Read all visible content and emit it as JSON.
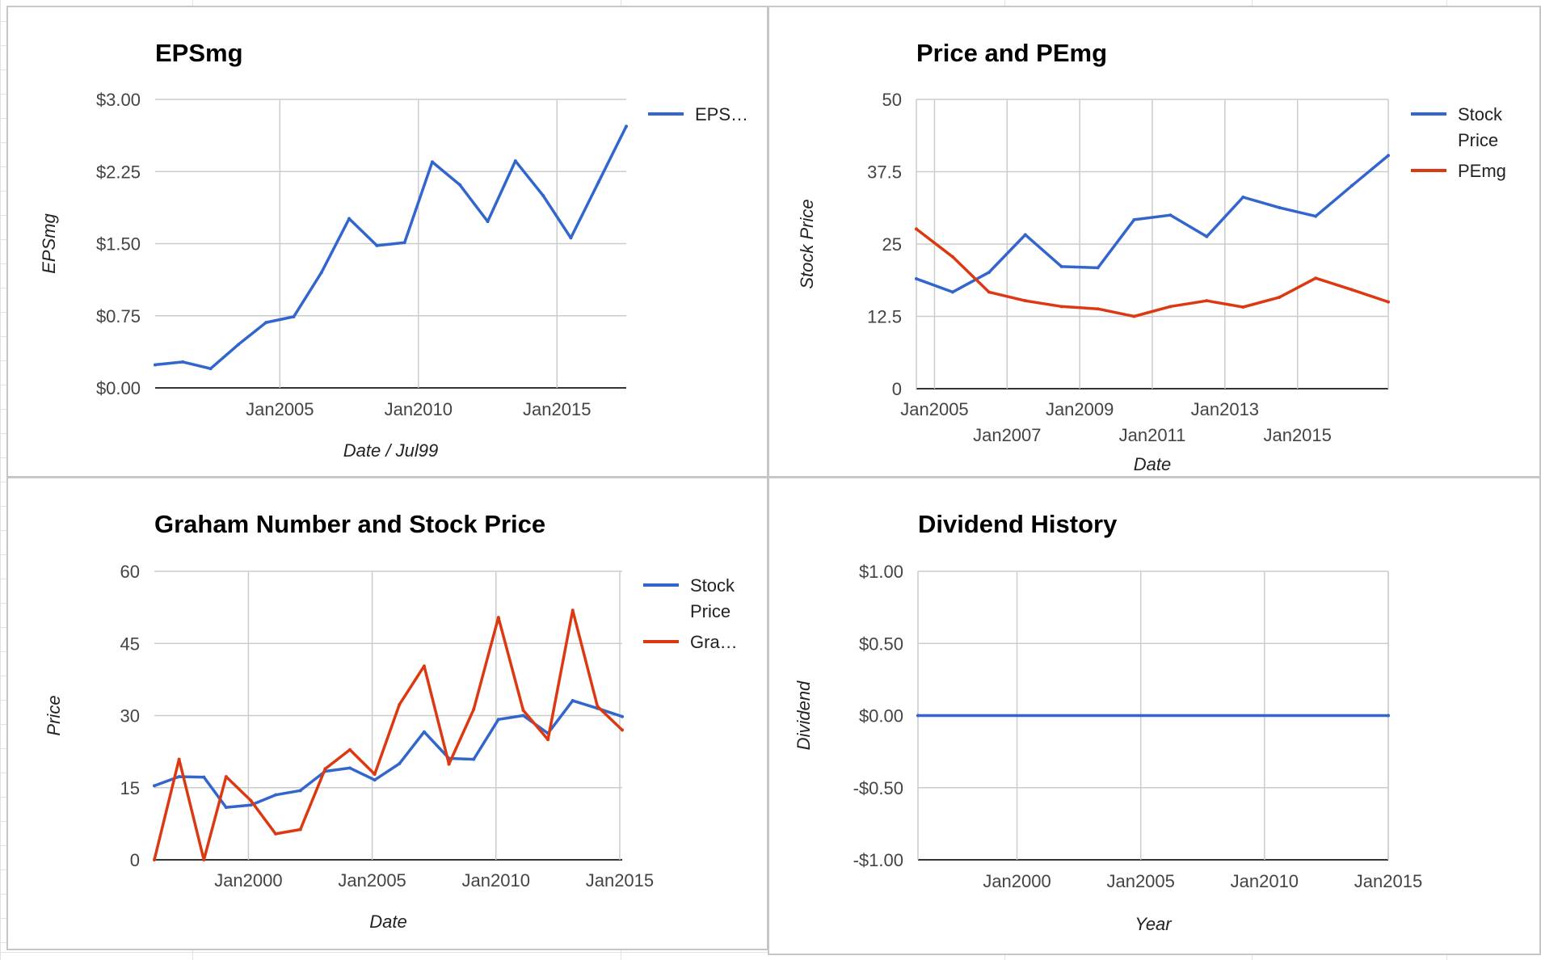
{
  "colors": {
    "blue": "#3366cc",
    "red": "#dc3912",
    "grid": "#cccccc"
  },
  "chart_data": [
    {
      "type": "line",
      "title": "EPSmg",
      "xlabel": "Date / Jul99",
      "ylabel": "EPSmg",
      "x_is_date": true,
      "xlim": [
        2000.5,
        2017.5
      ],
      "x_gridlines": [
        2005,
        2010,
        2015
      ],
      "x_ticks": [
        {
          "label": "Jan2005",
          "x": 2005
        },
        {
          "label": "Jan2010",
          "x": 2010
        },
        {
          "label": "Jan2015",
          "x": 2015
        }
      ],
      "ylim": [
        0,
        3
      ],
      "y_ticks": [
        {
          "label": "$0.00",
          "value": 0
        },
        {
          "label": "$0.75",
          "value": 0.75
        },
        {
          "label": "$1.50",
          "value": 1.5
        },
        {
          "label": "$2.25",
          "value": 2.25
        },
        {
          "label": "$3.00",
          "value": 3
        }
      ],
      "legend": "right",
      "series": [
        {
          "name": "EPS…",
          "color": "#3366cc",
          "x": [
            2000.5,
            2001.5,
            2002.5,
            2003.5,
            2004.5,
            2005.5,
            2006.5,
            2007.5,
            2008.5,
            2009.5,
            2010.5,
            2011.5,
            2012.5,
            2013.5,
            2014.5,
            2015.5,
            2016.5,
            2017.5
          ],
          "values": [
            0.24,
            0.27,
            0.2,
            0.45,
            0.68,
            0.74,
            1.2,
            1.76,
            1.48,
            1.51,
            2.35,
            2.11,
            1.73,
            2.36,
            2.0,
            1.56,
            2.14,
            2.72
          ]
        }
      ]
    },
    {
      "type": "line",
      "title": "Price and PEmg",
      "xlabel": "Date",
      "ylabel": "Stock Price",
      "x_is_date": true,
      "xlim": [
        2004.5,
        2017.5
      ],
      "x_gridlines": [
        2005,
        2007,
        2009,
        2011,
        2013,
        2015
      ],
      "x_ticks": [
        {
          "label": "Jan2005",
          "x": 2005
        },
        {
          "label": "Jan2007",
          "x": 2007
        },
        {
          "label": "Jan2009",
          "x": 2009
        },
        {
          "label": "Jan2011",
          "x": 2011
        },
        {
          "label": "Jan2013",
          "x": 2013
        },
        {
          "label": "Jan2015",
          "x": 2015
        }
      ],
      "ylim": [
        0,
        50
      ],
      "y_ticks": [
        {
          "label": "0",
          "value": 0
        },
        {
          "label": "12.5",
          "value": 12.5
        },
        {
          "label": "25",
          "value": 25
        },
        {
          "label": "37.5",
          "value": 37.5
        },
        {
          "label": "50",
          "value": 50
        }
      ],
      "legend": "right",
      "series": [
        {
          "name": "Stock Price",
          "color": "#3366cc",
          "x": [
            2004.5,
            2005.5,
            2006.5,
            2007.5,
            2008.5,
            2009.5,
            2010.5,
            2011.5,
            2012.5,
            2013.5,
            2014.5,
            2015.5,
            2016.5,
            2017.5
          ],
          "values": [
            19,
            16.7,
            20.1,
            26.6,
            21.1,
            20.9,
            29.2,
            30.0,
            26.3,
            33.1,
            31.3,
            29.8,
            35.1,
            40.3
          ]
        },
        {
          "name": "PEmg",
          "color": "#dc3912",
          "x": [
            2004.5,
            2005.5,
            2006.5,
            2007.5,
            2008.5,
            2009.5,
            2010.5,
            2011.5,
            2012.5,
            2013.5,
            2014.5,
            2015.5,
            2016.5,
            2017.5
          ],
          "values": [
            27.6,
            22.8,
            16.7,
            15.2,
            14.2,
            13.8,
            12.5,
            14.2,
            15.2,
            14.1,
            15.8,
            19.1,
            17.1,
            15.0
          ]
        }
      ]
    },
    {
      "type": "line",
      "title": "Graham Number and Stock Price",
      "xlabel": "Date",
      "ylabel": "Price",
      "x_is_date": true,
      "xlim": [
        1996.2,
        2015.1
      ],
      "x_gridlines": [
        2000,
        2005,
        2010,
        2015
      ],
      "x_ticks": [
        {
          "label": "Jan2000",
          "x": 2000
        },
        {
          "label": "Jan2005",
          "x": 2005
        },
        {
          "label": "Jan2010",
          "x": 2010
        },
        {
          "label": "Jan2015",
          "x": 2015
        }
      ],
      "ylim": [
        0,
        60
      ],
      "y_ticks": [
        {
          "label": "0",
          "value": 0
        },
        {
          "label": "15",
          "value": 15
        },
        {
          "label": "30",
          "value": 30
        },
        {
          "label": "45",
          "value": 45
        },
        {
          "label": "60",
          "value": 60
        }
      ],
      "legend": "right",
      "series": [
        {
          "name": "Stock Price",
          "color": "#3366cc",
          "x": [
            1996.2,
            1997.2,
            1998.2,
            1999.1,
            2000.1,
            2001.1,
            2002.1,
            2003.1,
            2004.1,
            2005.1,
            2006.1,
            2007.1,
            2008.1,
            2009.1,
            2010.1,
            2011.1,
            2012.1,
            2013.1,
            2014.1,
            2015.1
          ],
          "values": [
            15.4,
            17.3,
            17.2,
            10.9,
            11.4,
            13.5,
            14.4,
            18.4,
            19.1,
            16.6,
            20.0,
            26.6,
            21.1,
            20.9,
            29.2,
            30.0,
            26.3,
            33.1,
            31.5,
            29.8
          ]
        },
        {
          "name": "Gra…",
          "color": "#dc3912",
          "x": [
            1996.2,
            1997.2,
            1998.2,
            1999.1,
            2000.1,
            2001.1,
            2002.1,
            2003.1,
            2004.1,
            2005.1,
            2006.1,
            2007.1,
            2008.1,
            2009.1,
            2010.1,
            2011.1,
            2012.1,
            2013.1,
            2014.1,
            2015.1
          ],
          "values": [
            0,
            20.9,
            0,
            17.3,
            12.3,
            5.4,
            6.3,
            18.9,
            22.9,
            17.8,
            32.3,
            40.3,
            19.9,
            31.3,
            50.4,
            31.1,
            25.0,
            51.9,
            31.9,
            27.0
          ]
        }
      ]
    },
    {
      "type": "line",
      "title": "Dividend History",
      "xlabel": "Year",
      "ylabel": "Dividend",
      "x_is_date": true,
      "xlim": [
        1996,
        2015
      ],
      "x_gridlines": [
        2000,
        2005,
        2010,
        2015
      ],
      "x_ticks": [
        {
          "label": "Jan2000",
          "x": 2000
        },
        {
          "label": "Jan2005",
          "x": 2005
        },
        {
          "label": "Jan2010",
          "x": 2010
        },
        {
          "label": "Jan2015",
          "x": 2015
        }
      ],
      "ylim": [
        -1,
        1
      ],
      "y_ticks": [
        {
          "label": "-$1.00",
          "value": -1
        },
        {
          "label": "-$0.50",
          "value": -0.5
        },
        {
          "label": "$0.00",
          "value": 0
        },
        {
          "label": "$0.50",
          "value": 0.5
        },
        {
          "label": "$1.00",
          "value": 1
        }
      ],
      "legend": "none",
      "series": [
        {
          "color": "#3366cc",
          "x": [
            1996,
            2015
          ],
          "values": [
            0,
            0
          ]
        }
      ]
    }
  ]
}
